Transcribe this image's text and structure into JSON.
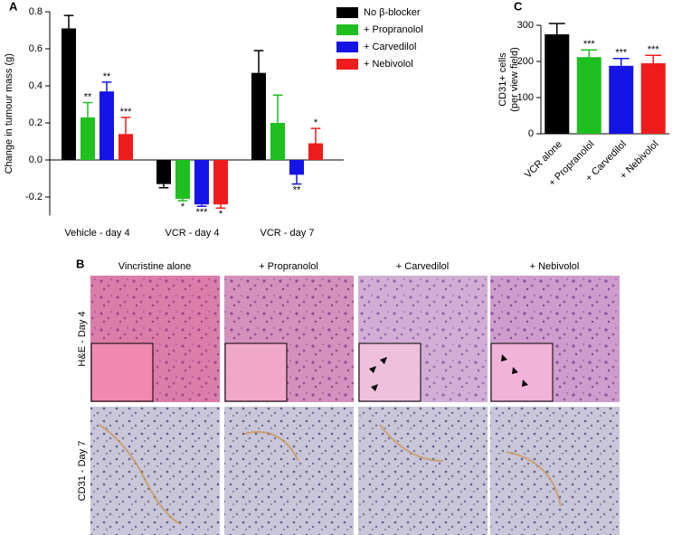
{
  "chart_data": [
    {
      "type": "bar",
      "panel": "A",
      "ylabel": "Change in tumour mass (g)",
      "categories": [
        "Vehicle - day 4",
        "VCR - day 4",
        "VCR - day 7"
      ],
      "series": [
        {
          "name": "No β-blocker",
          "color": "#000000",
          "values": [
            0.71,
            -0.13,
            0.47
          ],
          "errors": [
            0.07,
            0.02,
            0.12
          ],
          "stars": [
            null,
            null,
            null
          ]
        },
        {
          "name": "+ Propranolol",
          "color": "#1fbf1f",
          "values": [
            0.23,
            -0.21,
            0.2
          ],
          "errors": [
            0.08,
            0.01,
            0.15
          ],
          "stars": [
            "**",
            "*",
            null
          ]
        },
        {
          "name": "+ Carvedilol",
          "color": "#1414e6",
          "values": [
            0.37,
            -0.24,
            -0.08
          ],
          "errors": [
            0.05,
            0.01,
            0.05
          ],
          "stars": [
            "**",
            "***",
            "**"
          ]
        },
        {
          "name": "+ Nebivolol",
          "color": "#ee1c1c",
          "values": [
            0.14,
            -0.24,
            0.09
          ],
          "errors": [
            0.09,
            0.02,
            0.08
          ],
          "stars": [
            "***",
            "*",
            "*"
          ]
        }
      ],
      "ylim": [
        -0.3,
        0.8
      ],
      "yticks": [
        -0.2,
        {
          "value": 0,
          "label": "0.0"
        },
        0.2,
        0.4,
        0.6,
        0.8
      ],
      "legend": "top-right"
    },
    {
      "type": "bar",
      "panel": "C",
      "ylabel": [
        "CD31+ cells",
        "(per view field)"
      ],
      "categories": [
        "VCR alone",
        "+ Propranolol",
        "+ Carvedilol",
        "+ Nebivolol"
      ],
      "values": [
        275,
        212,
        188,
        195
      ],
      "errors": [
        30,
        20,
        20,
        22
      ],
      "stars": [
        null,
        "***",
        "***",
        "***"
      ],
      "colors": [
        "#000000",
        "#1fbf1f",
        "#1414e6",
        "#ee1c1c"
      ],
      "ylim": [
        0,
        300
      ],
      "yticks": [
        0,
        100,
        200,
        300
      ]
    }
  ],
  "panel_b": {
    "label": "B",
    "columns": [
      "Vincristine alone",
      "+ Propranolol",
      "+ Carvedilol",
      "+ Nebivolol"
    ],
    "rows": [
      "H&E - Day 4",
      "CD31 - Day 7"
    ]
  }
}
